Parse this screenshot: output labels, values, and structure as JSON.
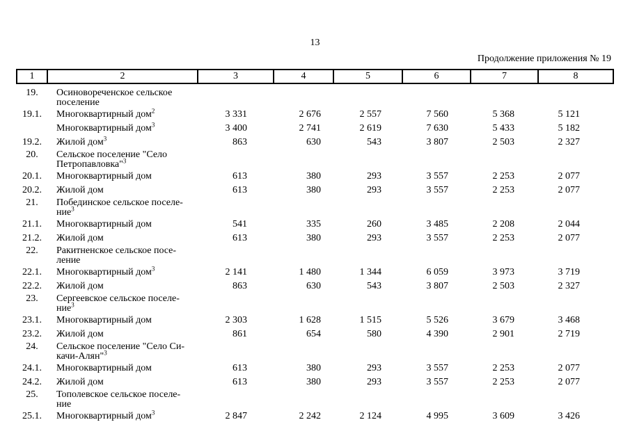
{
  "page": {
    "number": "13",
    "continuation": "Продолжение приложения № 19"
  },
  "table": {
    "column_numbers": [
      "1",
      "2",
      "3",
      "4",
      "5",
      "6",
      "7",
      "8"
    ],
    "rows": [
      {
        "num": "19.",
        "label": "Осиновореченское сельское\nпоселение",
        "values": []
      },
      {
        "num": "19.1.",
        "label": "Многоквартирный дом",
        "sup": "2",
        "values": [
          "3 331",
          "2 676",
          "2 557",
          "7 560",
          "5 368",
          "5 121"
        ]
      },
      {
        "num": "",
        "label": "Многоквартирный дом",
        "sup": "3",
        "values": [
          "3 400",
          "2 741",
          "2 619",
          "7 630",
          "5 433",
          "5 182"
        ]
      },
      {
        "num": "19.2.",
        "label": "Жилой дом",
        "sup": "3",
        "values": [
          "863",
          "630",
          "543",
          "3 807",
          "2 503",
          "2 327"
        ]
      },
      {
        "num": "20.",
        "label": "Сельское поселение \"Село\nПетропавловка\"",
        "sup": "3",
        "values": []
      },
      {
        "num": "20.1.",
        "label": "Многоквартирный дом",
        "values": [
          "613",
          "380",
          "293",
          "3 557",
          "2 253",
          "2 077"
        ]
      },
      {
        "num": "20.2.",
        "label": "Жилой дом",
        "values": [
          "613",
          "380",
          "293",
          "3 557",
          "2 253",
          "2 077"
        ]
      },
      {
        "num": "21.",
        "label": "Побединское сельское поселе-\nние",
        "sup": "3",
        "values": []
      },
      {
        "num": "21.1.",
        "label": "Многоквартирный дом",
        "values": [
          "541",
          "335",
          "260",
          "3 485",
          "2 208",
          "2 044"
        ]
      },
      {
        "num": "21.2.",
        "label": "Жилой дом",
        "values": [
          "613",
          "380",
          "293",
          "3 557",
          "2 253",
          "2 077"
        ]
      },
      {
        "num": "22.",
        "label": "Ракитненское сельское посе-\nление",
        "values": []
      },
      {
        "num": "22.1.",
        "label": "Многоквартирный дом",
        "sup": "3",
        "values": [
          "2 141",
          "1 480",
          "1 344",
          "6 059",
          "3 973",
          "3 719"
        ]
      },
      {
        "num": "22.2.",
        "label": "Жилой дом",
        "values": [
          "863",
          "630",
          "543",
          "3 807",
          "2 503",
          "2 327"
        ]
      },
      {
        "num": "23.",
        "label": "Сергеевское сельское поселе-\nние",
        "sup": "3",
        "values": []
      },
      {
        "num": "23.1.",
        "label": "Многоквартирный дом",
        "values": [
          "2 303",
          "1 628",
          "1 515",
          "5 526",
          "3 679",
          "3 468"
        ]
      },
      {
        "num": "23.2.",
        "label": "Жилой дом",
        "values": [
          "861",
          "654",
          "580",
          "4 390",
          "2 901",
          "2 719"
        ]
      },
      {
        "num": "24.",
        "label": "Сельское поселение \"Село Си-\nкачи-Алян\"",
        "sup": "3",
        "values": []
      },
      {
        "num": "24.1.",
        "label": "Многоквартирный дом",
        "values": [
          "613",
          "380",
          "293",
          "3 557",
          "2 253",
          "2 077"
        ]
      },
      {
        "num": "24.2.",
        "label": "Жилой дом",
        "values": [
          "613",
          "380",
          "293",
          "3 557",
          "2 253",
          "2 077"
        ]
      },
      {
        "num": "25.",
        "label": "Тополевское сельское поселе-\nние",
        "values": []
      },
      {
        "num": "25.1.",
        "label": "Многоквартирный дом",
        "sup": "3",
        "values": [
          "2 847",
          "2 242",
          "2 124",
          "4 995",
          "3 609",
          "3 426"
        ]
      }
    ]
  }
}
